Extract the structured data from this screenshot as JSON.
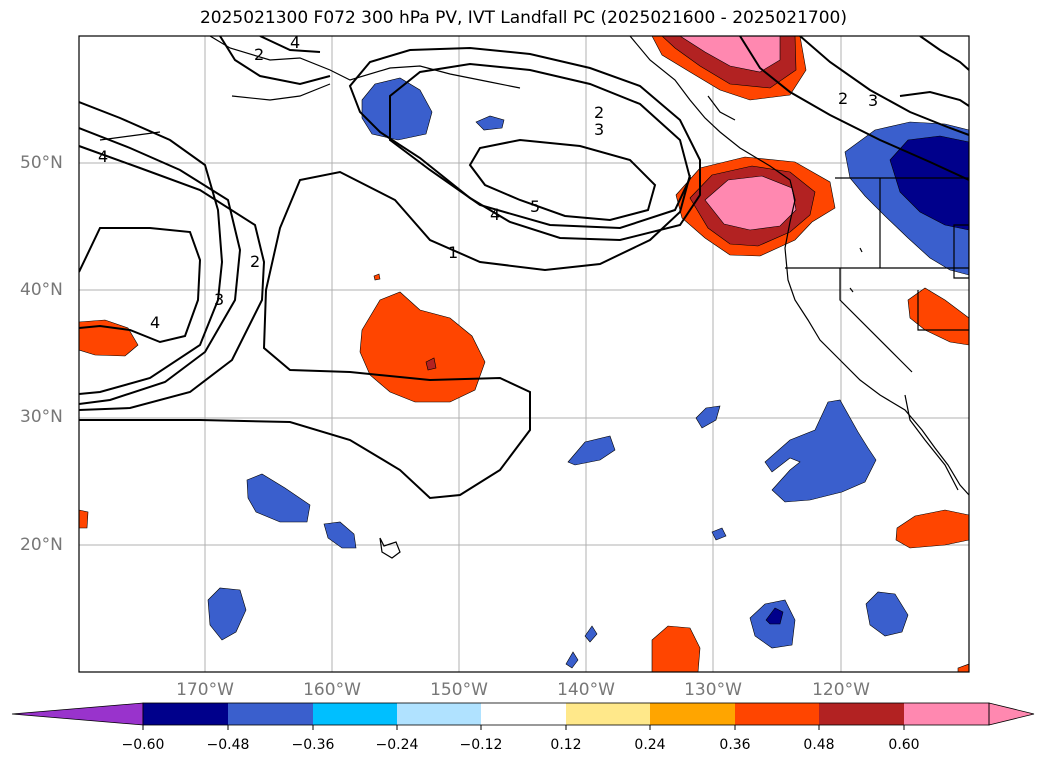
{
  "title": "2025021300 F072 300 hPa PV, IVT Landfall PC (2025021600 - 2025021700)",
  "lat_labels": [
    "50°N",
    "40°N",
    "30°N",
    "20°N"
  ],
  "lon_labels": [
    "170°W",
    "160°W",
    "150°W",
    "140°W",
    "130°W",
    "120°W"
  ],
  "contour_labels": [
    "4",
    "4",
    "2",
    "3",
    "4",
    "2",
    "3",
    "3",
    "2",
    "4",
    "5",
    "1",
    "4",
    "2",
    "3"
  ],
  "colorbar": {
    "tick_labels": [
      "−0.60",
      "−0.48",
      "−0.36",
      "−0.24",
      "−0.12",
      "0.12",
      "0.24",
      "0.36",
      "0.48",
      "0.60"
    ],
    "colors": [
      "#9933cc",
      "#00008b",
      "#3a5fcd",
      "#00bfff",
      "#b0e2ff",
      "#ffffff",
      "#ffe88a",
      "#ffa500",
      "#ff4500",
      "#b22222",
      "#ff88b0",
      "#ff88b0"
    ]
  }
}
